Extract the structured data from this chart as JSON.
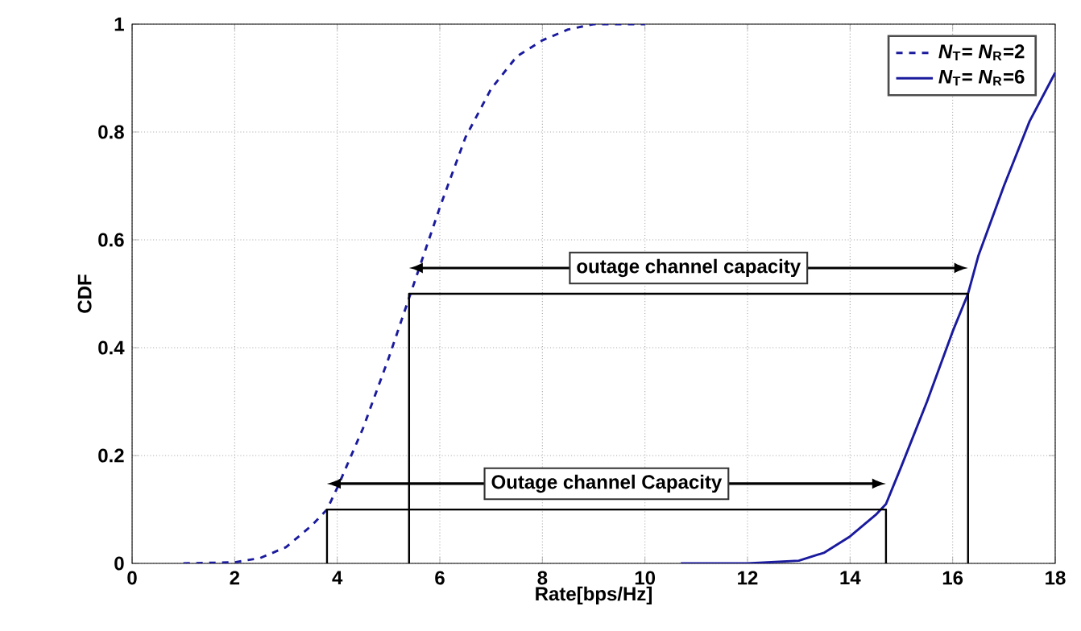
{
  "chart_data": {
    "type": "line",
    "xlabel": "Rate[bps/Hz]",
    "ylabel": "CDF",
    "xlim": [
      0,
      18
    ],
    "ylim": [
      0,
      1
    ],
    "xticks": [
      0,
      2,
      4,
      6,
      8,
      10,
      12,
      14,
      16,
      18
    ],
    "yticks": [
      0,
      0.2,
      0.4,
      0.6,
      0.8,
      1
    ],
    "grid": true,
    "legend": "top right",
    "marker": "none",
    "series": [
      {
        "name": "*N*$_{T}$= *N*$_{R}$=2",
        "color": "#1a1a9e",
        "line_style": "dashed",
        "x": [
          1,
          2,
          2.5,
          3,
          3.5,
          3.8,
          4,
          4.5,
          5,
          5.5,
          6,
          6.5,
          7,
          7.5,
          8,
          8.5,
          9,
          10
        ],
        "values": [
          0,
          0.002,
          0.01,
          0.03,
          0.07,
          0.1,
          0.14,
          0.25,
          0.38,
          0.52,
          0.66,
          0.79,
          0.88,
          0.94,
          0.97,
          0.99,
          1,
          1
        ]
      },
      {
        "name": "*N*$_{T}$= *N*$_{R}$=6",
        "color": "#1a1a9e",
        "line_style": "solid",
        "x": [
          10.7,
          12,
          13,
          13.5,
          14,
          14.5,
          14.7,
          15,
          15.5,
          16,
          16.3,
          16.5,
          17,
          17.5,
          18
        ],
        "values": [
          0,
          0,
          0.005,
          0.02,
          0.05,
          0.09,
          0.11,
          0.18,
          0.3,
          0.43,
          0.5,
          0.57,
          0.7,
          0.82,
          0.91
        ]
      },
      {
        "color": "#000000",
        "line_style": "solid",
        "x": [
          5.4,
          5.4,
          16.3,
          16.3
        ],
        "values": [
          0,
          0.5,
          0.5,
          0
        ]
      },
      {
        "color": "#000000",
        "line_style": "solid",
        "x": [
          3.8,
          3.8,
          14.7,
          14.7
        ],
        "values": [
          0,
          0.1,
          0.1,
          0
        ]
      }
    ],
    "annotations": [
      "outage channel capacity",
      "Outage channel Capacity"
    ]
  }
}
